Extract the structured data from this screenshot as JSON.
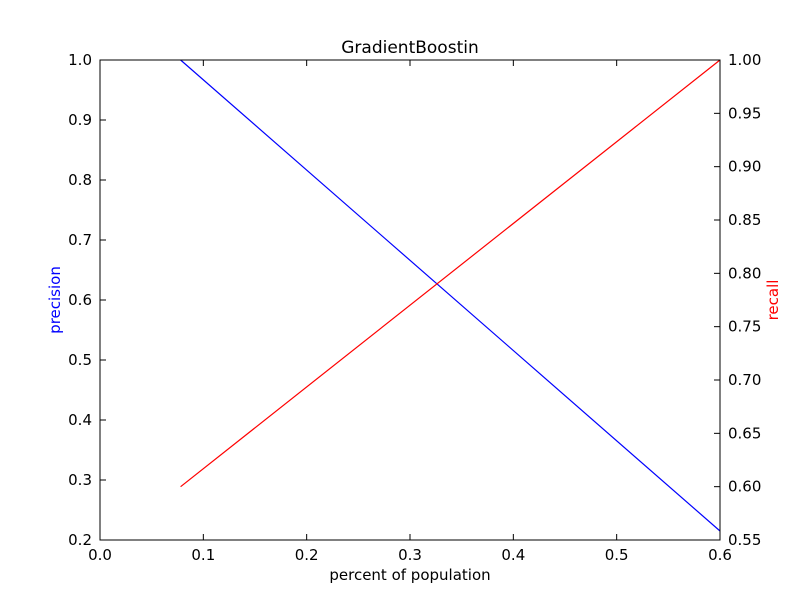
{
  "chart_data": {
    "type": "line",
    "title": "GradientBoostin",
    "xlabel": "percent of population",
    "ylabel_left": "precision",
    "ylabel_right": "recall",
    "xlim": [
      0.0,
      0.6
    ],
    "ylim_left": [
      0.2,
      1.0
    ],
    "ylim_right": [
      0.55,
      1.0
    ],
    "x_ticks": [
      "0.0",
      "0.1",
      "0.2",
      "0.3",
      "0.4",
      "0.5",
      "0.6"
    ],
    "y_left_ticks": [
      "0.2",
      "0.3",
      "0.4",
      "0.5",
      "0.6",
      "0.7",
      "0.8",
      "0.9",
      "1.0"
    ],
    "y_right_ticks": [
      "0.55",
      "0.60",
      "0.65",
      "0.70",
      "0.75",
      "0.80",
      "0.85",
      "0.90",
      "0.95",
      "1.00"
    ],
    "grid": false,
    "series": [
      {
        "name": "precision",
        "axis": "left",
        "color": "#0000ff",
        "x": [
          0.078,
          0.6
        ],
        "y": [
          1.0,
          0.215
        ]
      },
      {
        "name": "recall",
        "axis": "right",
        "color": "#ff0000",
        "x": [
          0.078,
          0.6
        ],
        "y": [
          0.6,
          1.0
        ]
      }
    ]
  }
}
